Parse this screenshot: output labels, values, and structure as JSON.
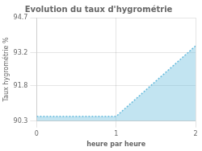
{
  "chart_data": {
    "type": "line",
    "title": "Evolution du taux d'hygrométrie",
    "xlabel": "heure par heure",
    "ylabel": "Taux hygrométrie %",
    "x": [
      0,
      1,
      2
    ],
    "values": [
      90.5,
      90.5,
      93.5
    ],
    "xlim": [
      0,
      2
    ],
    "xticks": [
      0,
      1,
      2
    ],
    "ylim": [
      90.3,
      94.7
    ],
    "yticks": [
      90.3,
      91.8,
      93.2,
      94.7
    ],
    "color": "#66bbdd",
    "line_style": "dotted",
    "grid": true
  }
}
